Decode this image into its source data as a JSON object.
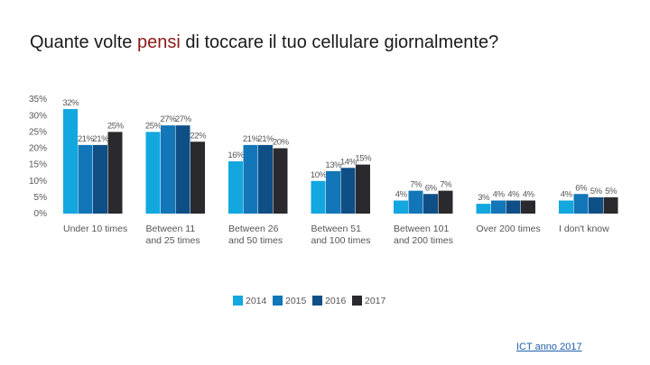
{
  "title": {
    "before": "Quante volte ",
    "highlight": "pensi",
    "after": " di toccare il tuo cellulare giornalmente?"
  },
  "source_link": "ICT anno 2017",
  "colors": {
    "2014": "#12a7df",
    "2015": "#1276b8",
    "2016": "#0e4f86",
    "2017": "#2a2a2e",
    "title_highlight": "#8b1a1a"
  },
  "chart_data": {
    "type": "bar",
    "categories": [
      [
        "Under 10 times"
      ],
      [
        "Between 11",
        "and 25 times"
      ],
      [
        "Between 26",
        "and 50 times"
      ],
      [
        "Between 51",
        "and 100 times"
      ],
      [
        "Between 101",
        "and 200 times"
      ],
      [
        "Over 200 times"
      ],
      [
        "I don't know"
      ]
    ],
    "series": [
      {
        "name": "2014",
        "values": [
          32,
          25,
          16,
          10,
          4,
          3,
          4
        ]
      },
      {
        "name": "2015",
        "values": [
          21,
          27,
          21,
          13,
          7,
          4,
          6
        ]
      },
      {
        "name": "2016",
        "values": [
          21,
          27,
          21,
          14,
          6,
          4,
          5
        ]
      },
      {
        "name": "2017",
        "values": [
          25,
          22,
          20,
          15,
          7,
          4,
          5
        ]
      }
    ],
    "ylim": [
      0,
      35
    ],
    "yticks": [
      "0%",
      "5%",
      "10%",
      "15%",
      "20%",
      "25%",
      "30%",
      "35%"
    ],
    "value_suffix": "%",
    "grid": false,
    "legend": "bottom-center"
  }
}
